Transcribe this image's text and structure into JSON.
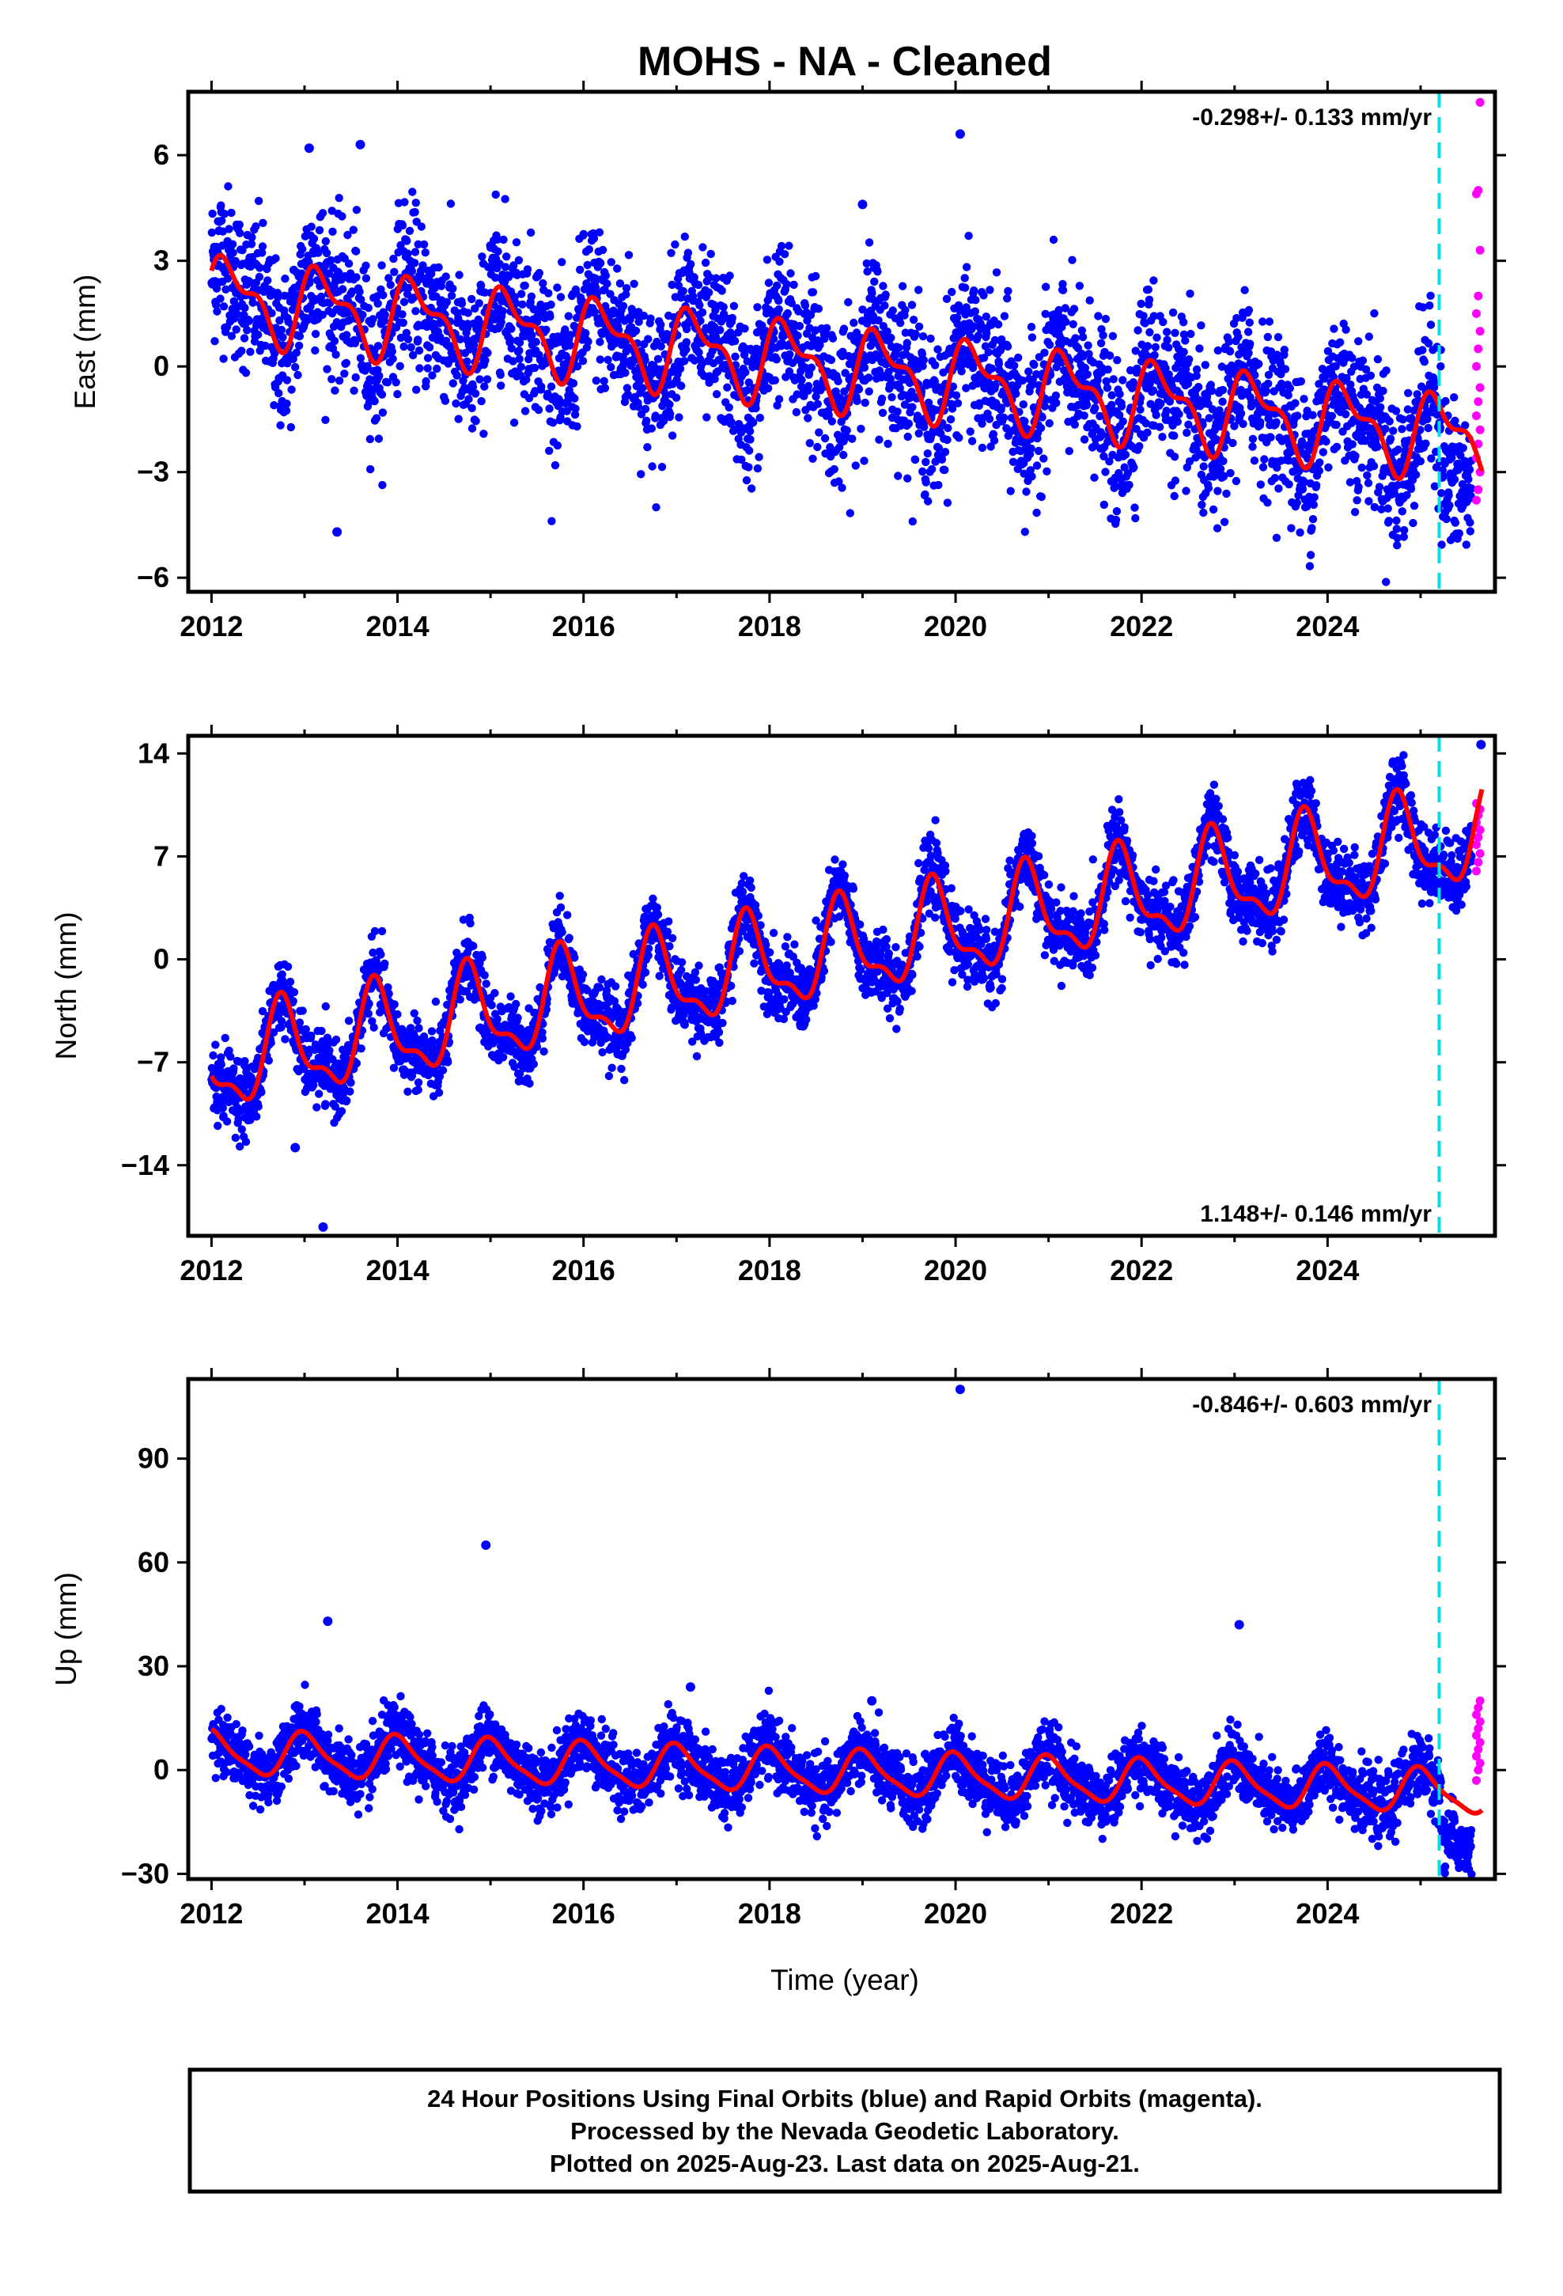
{
  "figure": {
    "title": "MOHS  - NA - Cleaned",
    "xlabel": "Time (year)",
    "footer_lines": [
      "24 Hour Positions Using Final Orbits (blue) and Rapid Orbits (magenta).",
      "Processed by the Nevada Geodetic Laboratory.",
      "Plotted on 2025-Aug-23. Last data on 2025-Aug-21."
    ]
  },
  "colors": {
    "final": "#0000ff",
    "rapid": "#ff00ff",
    "model": "#ff0000",
    "marker": "#00e0e0",
    "frame": "#000000"
  },
  "chart_data": [
    {
      "type": "scatter",
      "name": "east",
      "ylabel": "East (mm)",
      "rate_label": "-0.298+/- 0.133 mm/yr",
      "xlim": [
        2011.75,
        2025.8
      ],
      "ylim": [
        -6.4,
        7.8
      ],
      "xticks": [
        "2012",
        "2014",
        "2016",
        "2018",
        "2020",
        "2022",
        "2024"
      ],
      "yticks": [
        "6",
        "3",
        "0",
        "-3",
        "-6"
      ],
      "marker_x": 2025.2,
      "model": {
        "intercept": 2.0,
        "rate": -0.298,
        "annual": 1.0,
        "annual_phase": 0.3,
        "semiannual": 0.5,
        "semi_phase": 1.0
      },
      "scatter_sd": 1.1,
      "rapid_y": [
        -3.8,
        -3.5,
        -3.0,
        -2.6,
        -2.2,
        -1.8,
        -1.4,
        -1.0,
        -0.6,
        0.0,
        0.5,
        1.0,
        1.5,
        2.0,
        3.3,
        4.9,
        5.0,
        7.5
      ],
      "outliers": [
        {
          "x": 2013.35,
          "y": -4.7
        },
        {
          "x": 2020.05,
          "y": 6.6
        },
        {
          "x": 2013.05,
          "y": 6.2
        },
        {
          "x": 2013.6,
          "y": 6.3
        },
        {
          "x": 2019.0,
          "y": 4.6
        }
      ]
    },
    {
      "type": "scatter",
      "name": "north",
      "ylabel": "North (mm)",
      "rate_label": "1.148+/- 0.146 mm/yr",
      "xlim": [
        2011.75,
        2025.8
      ],
      "ylim": [
        -18.8,
        15.2
      ],
      "xticks": [
        "2012",
        "2014",
        "2016",
        "2018",
        "2020",
        "2022",
        "2024"
      ],
      "yticks": [
        "14",
        "7",
        "0",
        "-7",
        "-14"
      ],
      "marker_x": 2025.2,
      "model": {
        "intercept": -7.2,
        "rate": 1.148,
        "annual": 3.0,
        "annual_phase": 3.0,
        "semiannual": 1.2,
        "semi_phase": 5.0
      },
      "scatter_sd": 1.2,
      "rapid_y": [
        6.0,
        6.6,
        7.2,
        7.8,
        8.3,
        8.8,
        9.3,
        9.8,
        10.2,
        10.6
      ],
      "outliers": [
        {
          "x": 2013.2,
          "y": -18.2
        },
        {
          "x": 2025.65,
          "y": 14.6
        },
        {
          "x": 2012.9,
          "y": -12.8
        }
      ]
    },
    {
      "type": "scatter",
      "name": "up",
      "ylabel": "Up (mm)",
      "rate_label": "-0.846+/- 0.603 mm/yr",
      "xlim": [
        2011.75,
        2025.8
      ],
      "ylim": [
        -31.5,
        113
      ],
      "xticks": [
        "2012",
        "2014",
        "2016",
        "2018",
        "2020",
        "2022",
        "2024"
      ],
      "yticks": [
        "90",
        "60",
        "30",
        "0",
        "-30"
      ],
      "marker_x": 2025.2,
      "model": {
        "intercept": 5.0,
        "rate": -0.846,
        "annual": 6.0,
        "annual_phase": 1.5,
        "semiannual": 1.5,
        "semi_phase": 2.5
      },
      "scatter_sd": 4.5,
      "rapid_y": [
        -3,
        0,
        2,
        4,
        6,
        8,
        10,
        12,
        14,
        16,
        18,
        20
      ],
      "outliers": [
        {
          "x": 2020.05,
          "y": 110
        },
        {
          "x": 2014.95,
          "y": 65
        },
        {
          "x": 2013.25,
          "y": 43
        },
        {
          "x": 2023.05,
          "y": 42
        },
        {
          "x": 2017.15,
          "y": 24
        },
        {
          "x": 2019.1,
          "y": 20
        }
      ]
    }
  ]
}
